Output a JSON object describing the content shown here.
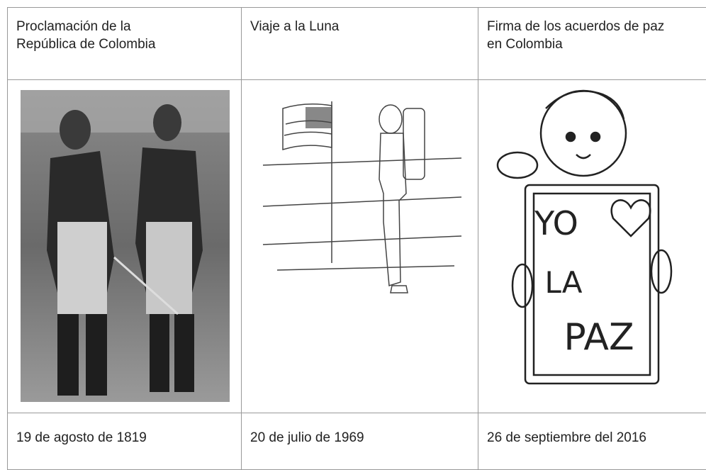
{
  "table": {
    "rows": [
      [
        "Proclamación de la República de Colombia",
        "Viaje a la Luna",
        "Firma de los acuerdos de paz en Colombia"
      ],
      [
        "19 de agosto de 1819",
        "20 de julio de 1969",
        "26 de septiembre del 2016"
      ]
    ]
  },
  "art_text": [
    "YO",
    "LA",
    "PAZ"
  ]
}
